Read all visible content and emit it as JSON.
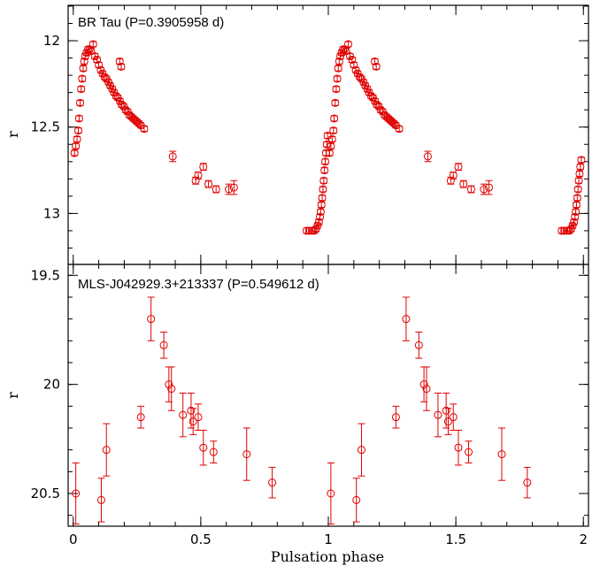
{
  "chart_data": [
    {
      "type": "scatter",
      "title": "BR Tau (P=0.3905958 d)",
      "ylabel": "r",
      "xlabel": "",
      "xlim": [
        -0.02,
        2.02
      ],
      "ylim": [
        12.0,
        13.0
      ],
      "y_inverted": true,
      "x_ticks": [
        0,
        0.5,
        1,
        1.5,
        2
      ],
      "x_tick_labels": [
        "",
        "",
        "",
        "",
        ""
      ],
      "y_ticks": [
        12,
        12.5,
        13
      ],
      "y_tick_labels": [
        "12",
        "12.5",
        "13"
      ],
      "color": "#e00000",
      "points": [
        {
          "x": 0.005,
          "y": 12.65,
          "e": 0.015
        },
        {
          "x": 0.01,
          "y": 12.61,
          "e": 0.015
        },
        {
          "x": 0.015,
          "y": 12.57,
          "e": 0.015
        },
        {
          "x": 0.02,
          "y": 12.52,
          "e": 0.015
        },
        {
          "x": 0.023,
          "y": 12.45,
          "e": 0.015
        },
        {
          "x": 0.027,
          "y": 12.36,
          "e": 0.015
        },
        {
          "x": 0.031,
          "y": 12.28,
          "e": 0.015
        },
        {
          "x": 0.035,
          "y": 12.22,
          "e": 0.015
        },
        {
          "x": 0.039,
          "y": 12.16,
          "e": 0.015
        },
        {
          "x": 0.043,
          "y": 12.12,
          "e": 0.015
        },
        {
          "x": 0.047,
          "y": 12.09,
          "e": 0.015
        },
        {
          "x": 0.052,
          "y": 12.07,
          "e": 0.015
        },
        {
          "x": 0.058,
          "y": 12.05,
          "e": 0.015
        },
        {
          "x": 0.064,
          "y": 12.05,
          "e": 0.015
        },
        {
          "x": 0.07,
          "y": 12.06,
          "e": 0.015
        },
        {
          "x": 0.078,
          "y": 12.02,
          "e": 0.015
        },
        {
          "x": 0.085,
          "y": 12.09,
          "e": 0.015
        },
        {
          "x": 0.093,
          "y": 12.11,
          "e": 0.015
        },
        {
          "x": 0.1,
          "y": 12.14,
          "e": 0.015
        },
        {
          "x": 0.108,
          "y": 12.17,
          "e": 0.015
        },
        {
          "x": 0.115,
          "y": 12.19,
          "e": 0.015
        },
        {
          "x": 0.123,
          "y": 12.21,
          "e": 0.015
        },
        {
          "x": 0.13,
          "y": 12.22,
          "e": 0.015
        },
        {
          "x": 0.138,
          "y": 12.24,
          "e": 0.015
        },
        {
          "x": 0.145,
          "y": 12.26,
          "e": 0.015
        },
        {
          "x": 0.153,
          "y": 12.28,
          "e": 0.015
        },
        {
          "x": 0.16,
          "y": 12.3,
          "e": 0.015
        },
        {
          "x": 0.168,
          "y": 12.32,
          "e": 0.015
        },
        {
          "x": 0.175,
          "y": 12.33,
          "e": 0.015
        },
        {
          "x": 0.183,
          "y": 12.35,
          "e": 0.015
        },
        {
          "x": 0.19,
          "y": 12.37,
          "e": 0.015
        },
        {
          "x": 0.198,
          "y": 12.38,
          "e": 0.015
        },
        {
          "x": 0.205,
          "y": 12.4,
          "e": 0.015
        },
        {
          "x": 0.213,
          "y": 12.41,
          "e": 0.015
        },
        {
          "x": 0.22,
          "y": 12.43,
          "e": 0.015
        },
        {
          "x": 0.228,
          "y": 12.44,
          "e": 0.015
        },
        {
          "x": 0.235,
          "y": 12.45,
          "e": 0.015
        },
        {
          "x": 0.243,
          "y": 12.46,
          "e": 0.015
        },
        {
          "x": 0.25,
          "y": 12.47,
          "e": 0.015
        },
        {
          "x": 0.258,
          "y": 12.48,
          "e": 0.015
        },
        {
          "x": 0.265,
          "y": 12.49,
          "e": 0.015
        },
        {
          "x": 0.278,
          "y": 12.51,
          "e": 0.015
        },
        {
          "x": 0.182,
          "y": 12.12,
          "e": 0.015
        },
        {
          "x": 0.188,
          "y": 12.15,
          "e": 0.015
        },
        {
          "x": 0.39,
          "y": 12.67,
          "e": 0.03
        },
        {
          "x": 0.48,
          "y": 12.81,
          "e": 0.02
        },
        {
          "x": 0.49,
          "y": 12.78,
          "e": 0.02
        },
        {
          "x": 0.51,
          "y": 12.73,
          "e": 0.02
        },
        {
          "x": 0.53,
          "y": 12.83,
          "e": 0.02
        },
        {
          "x": 0.56,
          "y": 12.86,
          "e": 0.02
        },
        {
          "x": 0.61,
          "y": 12.86,
          "e": 0.03
        },
        {
          "x": 0.63,
          "y": 12.85,
          "e": 0.04
        },
        {
          "x": 0.915,
          "y": 13.1,
          "e": 0.015
        },
        {
          "x": 0.925,
          "y": 13.1,
          "e": 0.015
        },
        {
          "x": 0.935,
          "y": 13.1,
          "e": 0.015
        },
        {
          "x": 0.945,
          "y": 13.1,
          "e": 0.015
        },
        {
          "x": 0.952,
          "y": 13.09,
          "e": 0.015
        },
        {
          "x": 0.958,
          "y": 13.07,
          "e": 0.015
        },
        {
          "x": 0.963,
          "y": 13.05,
          "e": 0.015
        },
        {
          "x": 0.967,
          "y": 13.02,
          "e": 0.015
        },
        {
          "x": 0.97,
          "y": 12.99,
          "e": 0.015
        },
        {
          "x": 0.973,
          "y": 12.95,
          "e": 0.015
        },
        {
          "x": 0.976,
          "y": 12.91,
          "e": 0.015
        },
        {
          "x": 0.979,
          "y": 12.86,
          "e": 0.015
        },
        {
          "x": 0.982,
          "y": 12.81,
          "e": 0.015
        },
        {
          "x": 0.985,
          "y": 12.75,
          "e": 0.015
        },
        {
          "x": 0.988,
          "y": 12.7,
          "e": 0.015
        },
        {
          "x": 0.991,
          "y": 12.65,
          "e": 0.015
        },
        {
          "x": 0.994,
          "y": 12.6,
          "e": 0.015
        },
        {
          "x": 0.997,
          "y": 12.55,
          "e": 0.015
        },
        {
          "x": 1.005,
          "y": 12.65,
          "e": 0.015
        },
        {
          "x": 1.01,
          "y": 12.61,
          "e": 0.015
        },
        {
          "x": 1.015,
          "y": 12.57,
          "e": 0.015
        },
        {
          "x": 1.02,
          "y": 12.52,
          "e": 0.015
        },
        {
          "x": 1.023,
          "y": 12.45,
          "e": 0.015
        },
        {
          "x": 1.027,
          "y": 12.36,
          "e": 0.015
        },
        {
          "x": 1.031,
          "y": 12.28,
          "e": 0.015
        },
        {
          "x": 1.035,
          "y": 12.22,
          "e": 0.015
        },
        {
          "x": 1.039,
          "y": 12.16,
          "e": 0.015
        },
        {
          "x": 1.043,
          "y": 12.12,
          "e": 0.015
        },
        {
          "x": 1.047,
          "y": 12.09,
          "e": 0.015
        },
        {
          "x": 1.052,
          "y": 12.07,
          "e": 0.015
        },
        {
          "x": 1.058,
          "y": 12.05,
          "e": 0.015
        },
        {
          "x": 1.064,
          "y": 12.05,
          "e": 0.015
        },
        {
          "x": 1.07,
          "y": 12.06,
          "e": 0.015
        },
        {
          "x": 1.078,
          "y": 12.02,
          "e": 0.015
        },
        {
          "x": 1.085,
          "y": 12.09,
          "e": 0.015
        },
        {
          "x": 1.093,
          "y": 12.11,
          "e": 0.015
        },
        {
          "x": 1.1,
          "y": 12.14,
          "e": 0.015
        },
        {
          "x": 1.108,
          "y": 12.17,
          "e": 0.015
        },
        {
          "x": 1.115,
          "y": 12.19,
          "e": 0.015
        },
        {
          "x": 1.123,
          "y": 12.21,
          "e": 0.015
        },
        {
          "x": 1.13,
          "y": 12.22,
          "e": 0.015
        },
        {
          "x": 1.138,
          "y": 12.24,
          "e": 0.015
        },
        {
          "x": 1.145,
          "y": 12.26,
          "e": 0.015
        },
        {
          "x": 1.153,
          "y": 12.28,
          "e": 0.015
        },
        {
          "x": 1.16,
          "y": 12.3,
          "e": 0.015
        },
        {
          "x": 1.168,
          "y": 12.32,
          "e": 0.015
        },
        {
          "x": 1.175,
          "y": 12.33,
          "e": 0.015
        },
        {
          "x": 1.183,
          "y": 12.35,
          "e": 0.015
        },
        {
          "x": 1.19,
          "y": 12.37,
          "e": 0.015
        },
        {
          "x": 1.198,
          "y": 12.38,
          "e": 0.015
        },
        {
          "x": 1.205,
          "y": 12.4,
          "e": 0.015
        },
        {
          "x": 1.213,
          "y": 12.41,
          "e": 0.015
        },
        {
          "x": 1.22,
          "y": 12.43,
          "e": 0.015
        },
        {
          "x": 1.228,
          "y": 12.44,
          "e": 0.015
        },
        {
          "x": 1.235,
          "y": 12.45,
          "e": 0.015
        },
        {
          "x": 1.243,
          "y": 12.46,
          "e": 0.015
        },
        {
          "x": 1.25,
          "y": 12.47,
          "e": 0.015
        },
        {
          "x": 1.258,
          "y": 12.48,
          "e": 0.015
        },
        {
          "x": 1.265,
          "y": 12.49,
          "e": 0.015
        },
        {
          "x": 1.278,
          "y": 12.51,
          "e": 0.015
        },
        {
          "x": 1.182,
          "y": 12.12,
          "e": 0.015
        },
        {
          "x": 1.188,
          "y": 12.15,
          "e": 0.015
        },
        {
          "x": 1.39,
          "y": 12.67,
          "e": 0.03
        },
        {
          "x": 1.48,
          "y": 12.81,
          "e": 0.02
        },
        {
          "x": 1.49,
          "y": 12.78,
          "e": 0.02
        },
        {
          "x": 1.51,
          "y": 12.73,
          "e": 0.02
        },
        {
          "x": 1.53,
          "y": 12.83,
          "e": 0.02
        },
        {
          "x": 1.56,
          "y": 12.86,
          "e": 0.02
        },
        {
          "x": 1.61,
          "y": 12.86,
          "e": 0.03
        },
        {
          "x": 1.63,
          "y": 12.85,
          "e": 0.04
        },
        {
          "x": 1.915,
          "y": 13.1,
          "e": 0.015
        },
        {
          "x": 1.925,
          "y": 13.1,
          "e": 0.015
        },
        {
          "x": 1.935,
          "y": 13.1,
          "e": 0.015
        },
        {
          "x": 1.945,
          "y": 13.1,
          "e": 0.015
        },
        {
          "x": 1.952,
          "y": 13.09,
          "e": 0.015
        },
        {
          "x": 1.958,
          "y": 13.07,
          "e": 0.015
        },
        {
          "x": 1.963,
          "y": 13.05,
          "e": 0.015
        },
        {
          "x": 1.967,
          "y": 13.02,
          "e": 0.015
        },
        {
          "x": 1.97,
          "y": 12.99,
          "e": 0.015
        },
        {
          "x": 1.973,
          "y": 12.95,
          "e": 0.015
        },
        {
          "x": 1.976,
          "y": 12.91,
          "e": 0.015
        },
        {
          "x": 1.979,
          "y": 12.86,
          "e": 0.015
        },
        {
          "x": 1.982,
          "y": 12.81,
          "e": 0.015
        },
        {
          "x": 1.985,
          "y": 12.77,
          "e": 0.015
        },
        {
          "x": 1.988,
          "y": 12.73,
          "e": 0.015
        },
        {
          "x": 1.992,
          "y": 12.69,
          "e": 0.015
        }
      ]
    },
    {
      "type": "scatter",
      "title": "MLS-J042929.3+213337 (P=0.549612 d)",
      "ylabel": "r",
      "xlabel": "Pulsation phase",
      "xlim": [
        -0.02,
        2.02
      ],
      "ylim": [
        19.5,
        20.5
      ],
      "y_inverted": true,
      "x_ticks": [
        0,
        0.5,
        1,
        1.5,
        2
      ],
      "x_tick_labels": [
        "0",
        "0.5",
        "1",
        "1.5",
        "2"
      ],
      "y_ticks": [
        19.5,
        20,
        20.5
      ],
      "y_tick_labels": [
        "19.5",
        "20",
        "20.5"
      ],
      "color": "#e00000",
      "points": [
        {
          "x": 0.01,
          "y": 20.5,
          "e": 0.14
        },
        {
          "x": 0.11,
          "y": 20.53,
          "e": 0.1
        },
        {
          "x": 0.13,
          "y": 20.3,
          "e": 0.12
        },
        {
          "x": 0.265,
          "y": 20.15,
          "e": 0.05
        },
        {
          "x": 0.305,
          "y": 19.7,
          "e": 0.1
        },
        {
          "x": 0.355,
          "y": 19.82,
          "e": 0.06
        },
        {
          "x": 0.375,
          "y": 20.0,
          "e": 0.08
        },
        {
          "x": 0.385,
          "y": 20.02,
          "e": 0.1
        },
        {
          "x": 0.43,
          "y": 20.14,
          "e": 0.1
        },
        {
          "x": 0.462,
          "y": 20.12,
          "e": 0.08
        },
        {
          "x": 0.47,
          "y": 20.17,
          "e": 0.06
        },
        {
          "x": 0.49,
          "y": 20.15,
          "e": 0.06
        },
        {
          "x": 0.51,
          "y": 20.29,
          "e": 0.08
        },
        {
          "x": 0.55,
          "y": 20.31,
          "e": 0.05
        },
        {
          "x": 0.68,
          "y": 20.32,
          "e": 0.12
        },
        {
          "x": 0.78,
          "y": 20.45,
          "e": 0.07
        },
        {
          "x": 1.01,
          "y": 20.5,
          "e": 0.14
        },
        {
          "x": 1.11,
          "y": 20.53,
          "e": 0.1
        },
        {
          "x": 1.13,
          "y": 20.3,
          "e": 0.12
        },
        {
          "x": 1.265,
          "y": 20.15,
          "e": 0.05
        },
        {
          "x": 1.305,
          "y": 19.7,
          "e": 0.1
        },
        {
          "x": 1.355,
          "y": 19.82,
          "e": 0.06
        },
        {
          "x": 1.375,
          "y": 20.0,
          "e": 0.08
        },
        {
          "x": 1.385,
          "y": 20.02,
          "e": 0.1
        },
        {
          "x": 1.43,
          "y": 20.14,
          "e": 0.1
        },
        {
          "x": 1.462,
          "y": 20.12,
          "e": 0.08
        },
        {
          "x": 1.47,
          "y": 20.17,
          "e": 0.06
        },
        {
          "x": 1.49,
          "y": 20.15,
          "e": 0.06
        },
        {
          "x": 1.51,
          "y": 20.29,
          "e": 0.08
        },
        {
          "x": 1.55,
          "y": 20.31,
          "e": 0.05
        },
        {
          "x": 1.68,
          "y": 20.32,
          "e": 0.12
        },
        {
          "x": 1.78,
          "y": 20.45,
          "e": 0.07
        }
      ]
    }
  ]
}
